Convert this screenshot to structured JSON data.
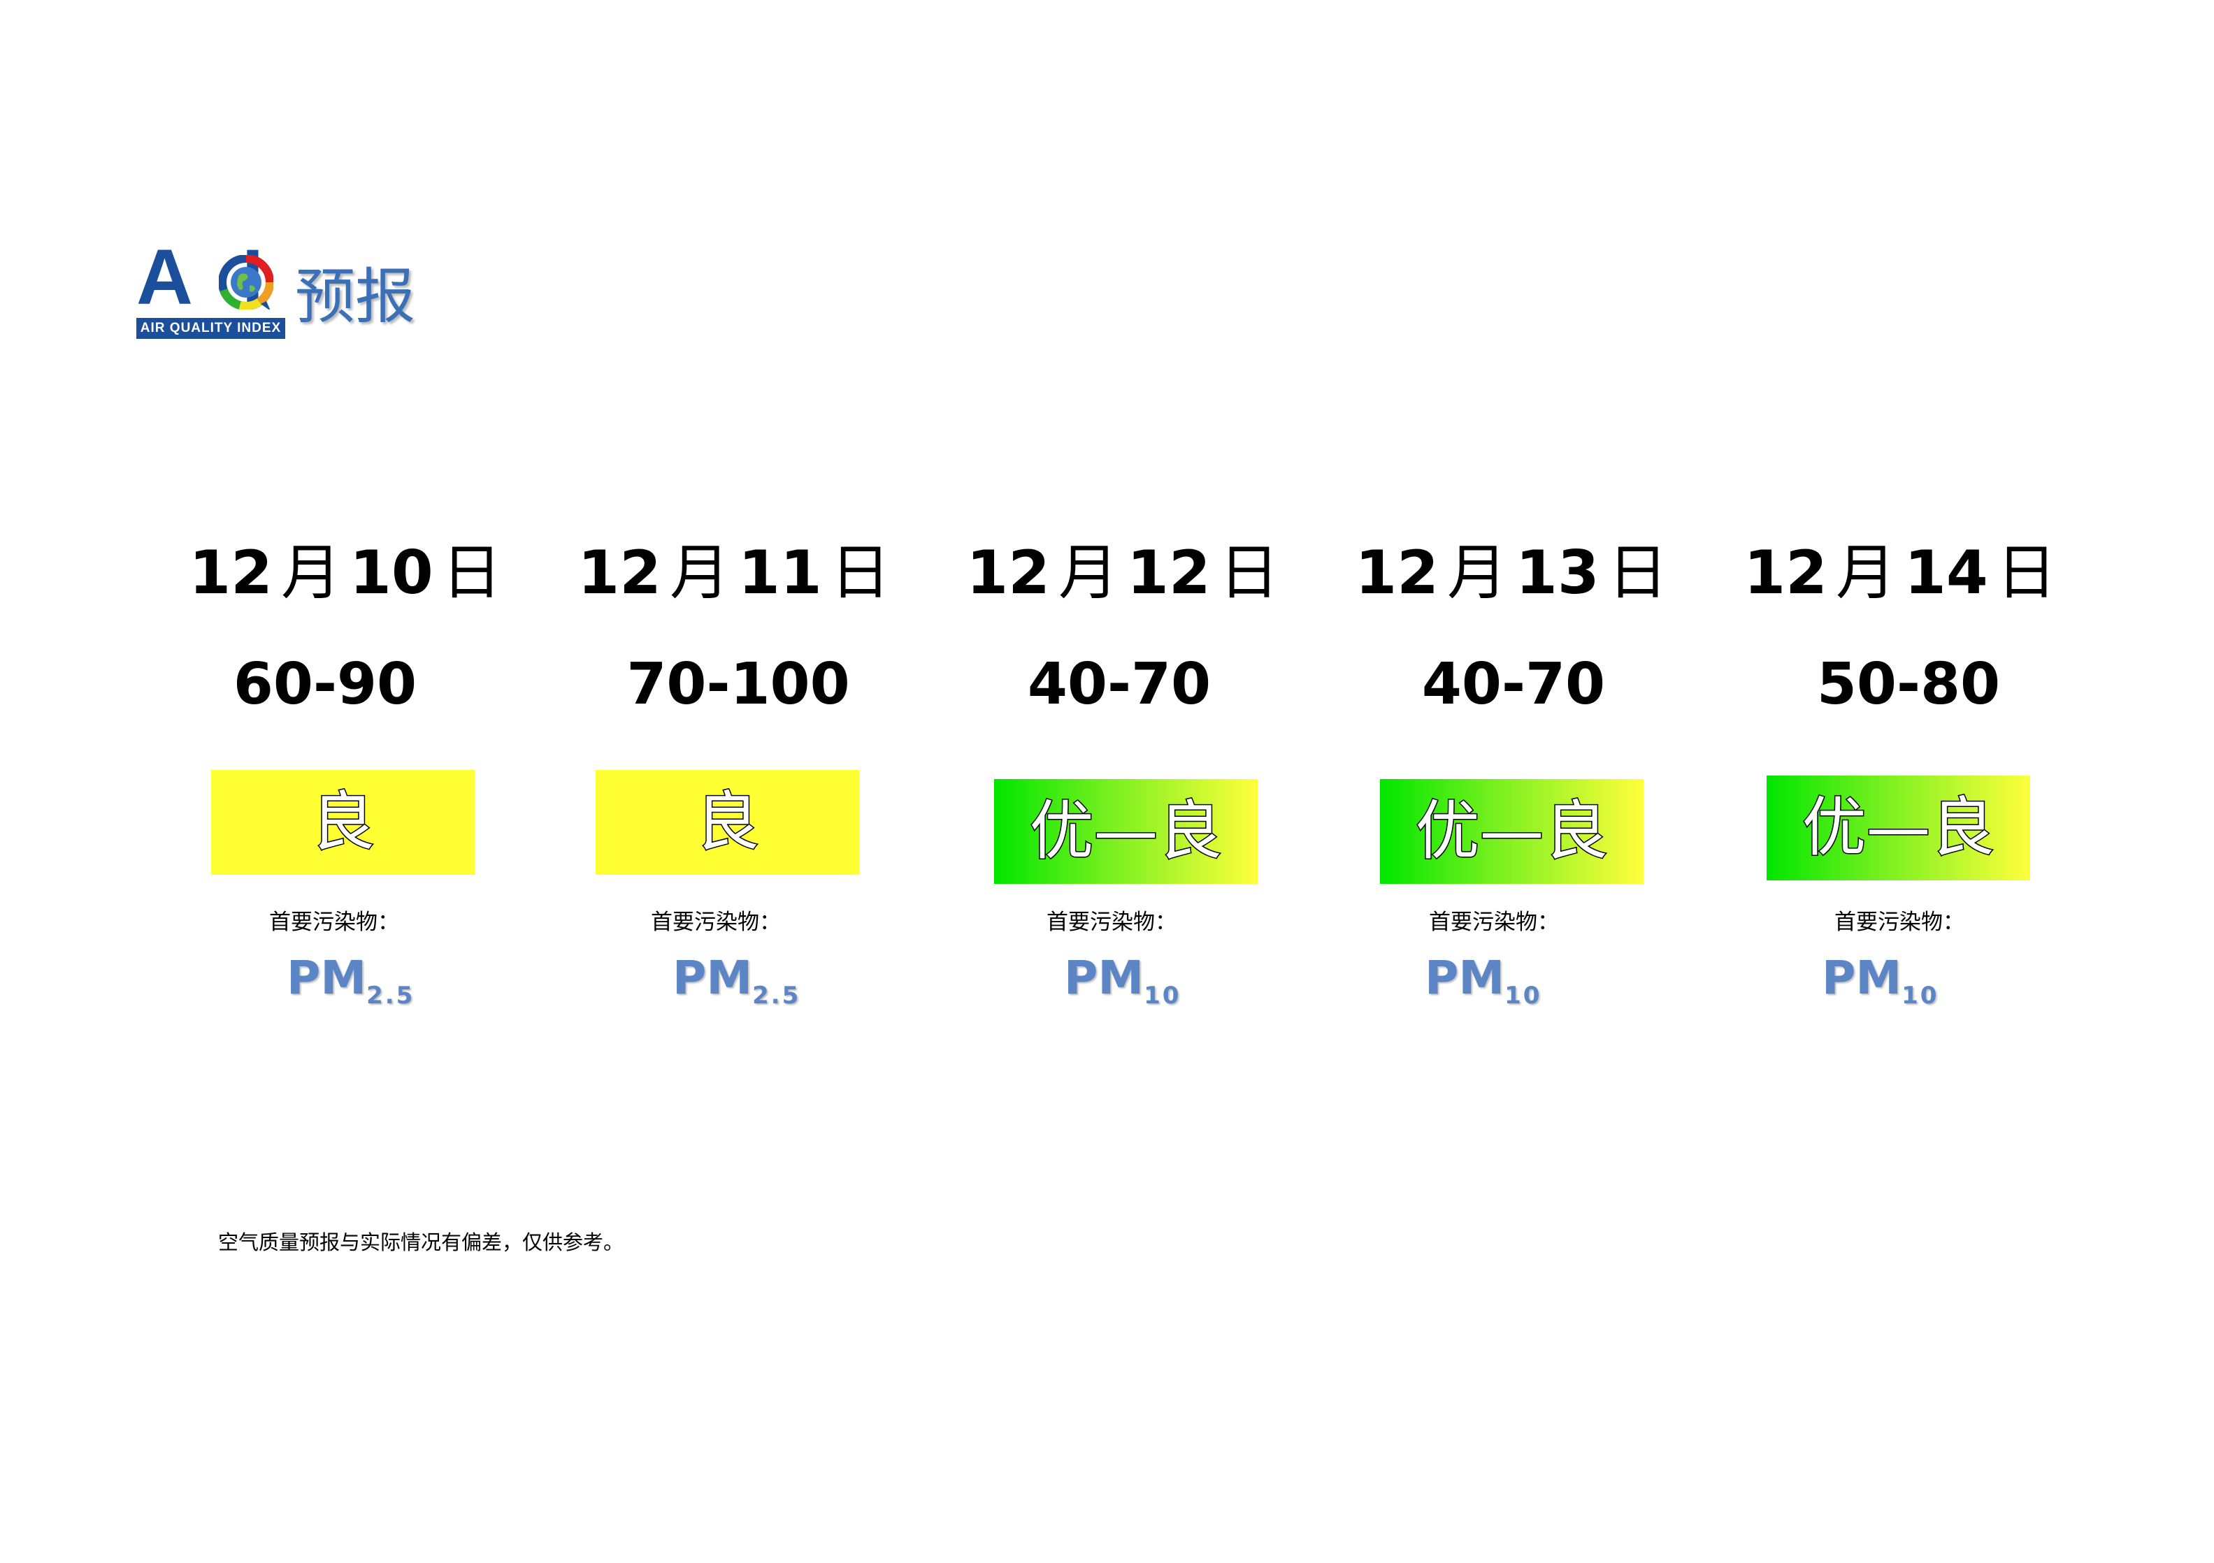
{
  "logo": {
    "letters_left": "A",
    "letters_right": "I",
    "strip_text": "AIR QUALITY INDEX",
    "title": "预报",
    "brand_color": "#1b4f9c"
  },
  "days": [
    {
      "month": "12",
      "month_unit": "月",
      "day": "10",
      "day_unit": "日",
      "range": "60-90",
      "level": "良",
      "level_color": "yellow",
      "pollutant_label": "首要污染物：",
      "pollutant_main": "PM",
      "pollutant_sub": "2.5"
    },
    {
      "month": "12",
      "month_unit": "月",
      "day": "11",
      "day_unit": "日",
      "range": "70-100",
      "level": "良",
      "level_color": "yellow",
      "pollutant_label": "首要污染物：",
      "pollutant_main": "PM",
      "pollutant_sub": "2.5"
    },
    {
      "month": "12",
      "month_unit": "月",
      "day": "12",
      "day_unit": "日",
      "range": "40-70",
      "level": "优—良",
      "level_color": "green-yellow",
      "pollutant_label": "首要污染物：",
      "pollutant_main": "PM",
      "pollutant_sub": "10"
    },
    {
      "month": "12",
      "month_unit": "月",
      "day": "13",
      "day_unit": "日",
      "range": "40-70",
      "level": "优—良",
      "level_color": "green-yellow",
      "pollutant_label": "首要污染物：",
      "pollutant_main": "PM",
      "pollutant_sub": "10"
    },
    {
      "month": "12",
      "month_unit": "月",
      "day": "14",
      "day_unit": "日",
      "range": "50-80",
      "level": "优—良",
      "level_color": "green-yellow",
      "pollutant_label": "首要污染物：",
      "pollutant_main": "PM",
      "pollutant_sub": "10"
    }
  ],
  "note": "空气质量预报与实际情况有偏差，仅供参考。",
  "colors": {
    "good_yellow": "#ffff33",
    "excellent_green": "#00e600",
    "pollutant_blue": "#5b85c5"
  }
}
